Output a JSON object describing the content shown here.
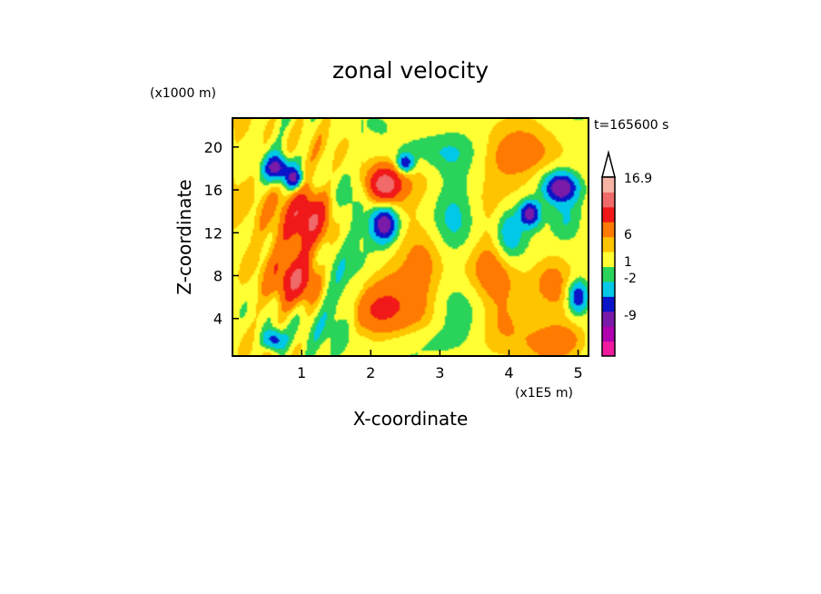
{
  "chart_data": {
    "type": "heatmap",
    "title": "zonal velocity",
    "xlabel": "X-coordinate",
    "ylabel": "Z-coordinate",
    "x_unit": "(x1E5 m)",
    "y_unit": "(x1000 m)",
    "time_label": "t=165600 s",
    "xlim": [
      0,
      5.15
    ],
    "ylim": [
      0.5,
      22.7
    ],
    "x_ticks": [
      "1",
      "2",
      "3",
      "4",
      "5"
    ],
    "y_ticks": [
      "4",
      "8",
      "12",
      "16",
      "20"
    ],
    "grid": false,
    "colorbar": {
      "max_label": "16.9",
      "labels": [
        "6",
        "1",
        "-2",
        "-9"
      ],
      "levels": [
        {
          "color": "#f01a9e"
        },
        {
          "color": "#b000b0"
        },
        {
          "color": "#7a1aa8"
        },
        {
          "color": "#0a14c8"
        },
        {
          "color": "#00c8e6"
        },
        {
          "color": "#2ad35a"
        },
        {
          "color": "#ffff33"
        },
        {
          "color": "#ffc400"
        },
        {
          "color": "#ff7a00"
        },
        {
          "color": "#f01818"
        },
        {
          "color": "#f06a6a"
        },
        {
          "color": "#f6b4a6"
        }
      ]
    },
    "features": [
      {
        "x": 0.3,
        "z": 13.0,
        "w": 0.7,
        "h": 5.0,
        "amp": 1.2
      },
      {
        "x": 0.95,
        "z": 7.5,
        "w": 0.3,
        "h": 2.2,
        "amp": 4.5
      },
      {
        "x": 1.1,
        "z": 13.5,
        "w": 0.3,
        "h": 2.5,
        "amp": 4.5
      },
      {
        "x": 1.05,
        "z": 10.5,
        "w": 0.55,
        "h": 4.0,
        "amp": 1.5
      },
      {
        "x": 0.65,
        "z": 18.0,
        "w": 0.18,
        "h": 1.2,
        "amp": -7.0
      },
      {
        "x": 0.9,
        "z": 17.0,
        "w": 0.12,
        "h": 1.0,
        "amp": -6.0
      },
      {
        "x": 0.6,
        "z": 2.0,
        "w": 0.15,
        "h": 1.0,
        "amp": -6.0
      },
      {
        "x": 1.55,
        "z": 6.0,
        "w": 0.35,
        "h": 5.0,
        "amp": -2.0
      },
      {
        "x": 1.7,
        "z": 15.0,
        "w": 0.3,
        "h": 3.0,
        "amp": -1.5
      },
      {
        "x": 2.2,
        "z": 16.5,
        "w": 0.22,
        "h": 1.5,
        "amp": 6.5
      },
      {
        "x": 2.1,
        "z": 15.0,
        "w": 0.5,
        "h": 3.5,
        "amp": 2.5
      },
      {
        "x": 2.2,
        "z": 12.8,
        "w": 0.18,
        "h": 1.6,
        "amp": -8.0
      },
      {
        "x": 2.1,
        "z": 12.0,
        "w": 0.4,
        "h": 3.5,
        "amp": -2.2
      },
      {
        "x": 2.5,
        "z": 18.5,
        "w": 0.12,
        "h": 0.9,
        "amp": -6.0
      },
      {
        "x": 2.9,
        "z": 19.5,
        "w": 0.6,
        "h": 1.8,
        "amp": -1.5
      },
      {
        "x": 2.4,
        "z": 6.0,
        "w": 0.55,
        "h": 3.5,
        "amp": 3.0
      },
      {
        "x": 2.0,
        "z": 4.5,
        "w": 0.4,
        "h": 2.0,
        "amp": 1.5
      },
      {
        "x": 2.8,
        "z": 9.0,
        "w": 0.3,
        "h": 5.0,
        "amp": 1.5
      },
      {
        "x": 3.2,
        "z": 14.0,
        "w": 0.3,
        "h": 5.0,
        "amp": -1.8
      },
      {
        "x": 3.3,
        "z": 4.0,
        "w": 0.4,
        "h": 3.0,
        "amp": -2.0
      },
      {
        "x": 3.0,
        "z": 2.0,
        "w": 0.5,
        "h": 1.5,
        "amp": -1.2
      },
      {
        "x": 3.8,
        "z": 8.5,
        "w": 0.35,
        "h": 5.0,
        "amp": 2.0
      },
      {
        "x": 4.0,
        "z": 12.0,
        "w": 0.2,
        "h": 2.5,
        "amp": -4.0
      },
      {
        "x": 4.3,
        "z": 13.8,
        "w": 0.15,
        "h": 1.2,
        "amp": -7.5
      },
      {
        "x": 4.1,
        "z": 19.0,
        "w": 0.6,
        "h": 2.2,
        "amp": 2.5
      },
      {
        "x": 4.0,
        "z": 3.5,
        "w": 0.4,
        "h": 2.5,
        "amp": 2.0
      },
      {
        "x": 4.75,
        "z": 16.2,
        "w": 0.22,
        "h": 1.3,
        "amp": -8.0
      },
      {
        "x": 4.85,
        "z": 13.0,
        "w": 0.25,
        "h": 2.0,
        "amp": -2.5
      },
      {
        "x": 5.0,
        "z": 6.0,
        "w": 0.15,
        "h": 1.5,
        "amp": -6.5
      },
      {
        "x": 4.6,
        "z": 8.0,
        "w": 0.3,
        "h": 3.0,
        "amp": 2.0
      },
      {
        "x": 4.7,
        "z": 2.0,
        "w": 0.4,
        "h": 1.5,
        "amp": 3.0
      }
    ]
  }
}
